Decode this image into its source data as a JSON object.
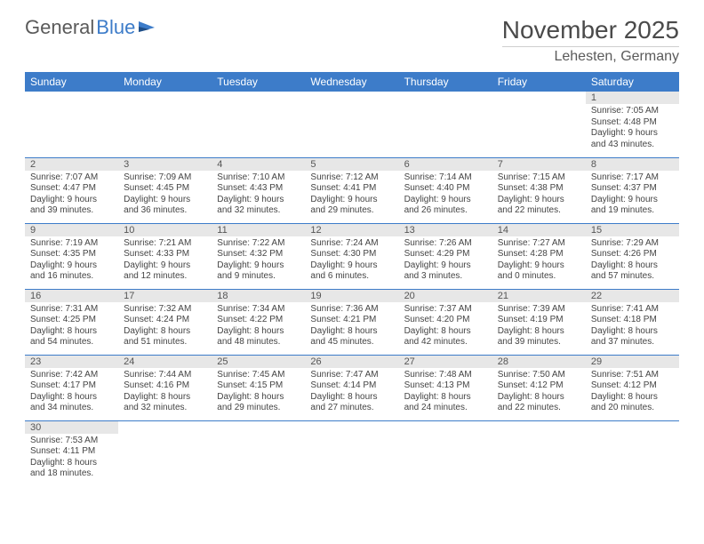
{
  "logo": {
    "text1": "General",
    "text2": "Blue"
  },
  "title": "November 2025",
  "location": "Lehesten, Germany",
  "weekdays": [
    "Sunday",
    "Monday",
    "Tuesday",
    "Wednesday",
    "Thursday",
    "Friday",
    "Saturday"
  ],
  "colors": {
    "header_bg": "#3d7cc9",
    "header_text": "#ffffff",
    "daynum_bg": "#e7e7e7",
    "row_divider": "#3d7cc9",
    "text": "#444444",
    "title_text": "#4a4a4a"
  },
  "weeks": [
    [
      null,
      null,
      null,
      null,
      null,
      null,
      {
        "n": "1",
        "sunrise": "7:05 AM",
        "sunset": "4:48 PM",
        "dl": "9 hours and 43 minutes."
      }
    ],
    [
      {
        "n": "2",
        "sunrise": "7:07 AM",
        "sunset": "4:47 PM",
        "dl": "9 hours and 39 minutes."
      },
      {
        "n": "3",
        "sunrise": "7:09 AM",
        "sunset": "4:45 PM",
        "dl": "9 hours and 36 minutes."
      },
      {
        "n": "4",
        "sunrise": "7:10 AM",
        "sunset": "4:43 PM",
        "dl": "9 hours and 32 minutes."
      },
      {
        "n": "5",
        "sunrise": "7:12 AM",
        "sunset": "4:41 PM",
        "dl": "9 hours and 29 minutes."
      },
      {
        "n": "6",
        "sunrise": "7:14 AM",
        "sunset": "4:40 PM",
        "dl": "9 hours and 26 minutes."
      },
      {
        "n": "7",
        "sunrise": "7:15 AM",
        "sunset": "4:38 PM",
        "dl": "9 hours and 22 minutes."
      },
      {
        "n": "8",
        "sunrise": "7:17 AM",
        "sunset": "4:37 PM",
        "dl": "9 hours and 19 minutes."
      }
    ],
    [
      {
        "n": "9",
        "sunrise": "7:19 AM",
        "sunset": "4:35 PM",
        "dl": "9 hours and 16 minutes."
      },
      {
        "n": "10",
        "sunrise": "7:21 AM",
        "sunset": "4:33 PM",
        "dl": "9 hours and 12 minutes."
      },
      {
        "n": "11",
        "sunrise": "7:22 AM",
        "sunset": "4:32 PM",
        "dl": "9 hours and 9 minutes."
      },
      {
        "n": "12",
        "sunrise": "7:24 AM",
        "sunset": "4:30 PM",
        "dl": "9 hours and 6 minutes."
      },
      {
        "n": "13",
        "sunrise": "7:26 AM",
        "sunset": "4:29 PM",
        "dl": "9 hours and 3 minutes."
      },
      {
        "n": "14",
        "sunrise": "7:27 AM",
        "sunset": "4:28 PM",
        "dl": "9 hours and 0 minutes."
      },
      {
        "n": "15",
        "sunrise": "7:29 AM",
        "sunset": "4:26 PM",
        "dl": "8 hours and 57 minutes."
      }
    ],
    [
      {
        "n": "16",
        "sunrise": "7:31 AM",
        "sunset": "4:25 PM",
        "dl": "8 hours and 54 minutes."
      },
      {
        "n": "17",
        "sunrise": "7:32 AM",
        "sunset": "4:24 PM",
        "dl": "8 hours and 51 minutes."
      },
      {
        "n": "18",
        "sunrise": "7:34 AM",
        "sunset": "4:22 PM",
        "dl": "8 hours and 48 minutes."
      },
      {
        "n": "19",
        "sunrise": "7:36 AM",
        "sunset": "4:21 PM",
        "dl": "8 hours and 45 minutes."
      },
      {
        "n": "20",
        "sunrise": "7:37 AM",
        "sunset": "4:20 PM",
        "dl": "8 hours and 42 minutes."
      },
      {
        "n": "21",
        "sunrise": "7:39 AM",
        "sunset": "4:19 PM",
        "dl": "8 hours and 39 minutes."
      },
      {
        "n": "22",
        "sunrise": "7:41 AM",
        "sunset": "4:18 PM",
        "dl": "8 hours and 37 minutes."
      }
    ],
    [
      {
        "n": "23",
        "sunrise": "7:42 AM",
        "sunset": "4:17 PM",
        "dl": "8 hours and 34 minutes."
      },
      {
        "n": "24",
        "sunrise": "7:44 AM",
        "sunset": "4:16 PM",
        "dl": "8 hours and 32 minutes."
      },
      {
        "n": "25",
        "sunrise": "7:45 AM",
        "sunset": "4:15 PM",
        "dl": "8 hours and 29 minutes."
      },
      {
        "n": "26",
        "sunrise": "7:47 AM",
        "sunset": "4:14 PM",
        "dl": "8 hours and 27 minutes."
      },
      {
        "n": "27",
        "sunrise": "7:48 AM",
        "sunset": "4:13 PM",
        "dl": "8 hours and 24 minutes."
      },
      {
        "n": "28",
        "sunrise": "7:50 AM",
        "sunset": "4:12 PM",
        "dl": "8 hours and 22 minutes."
      },
      {
        "n": "29",
        "sunrise": "7:51 AM",
        "sunset": "4:12 PM",
        "dl": "8 hours and 20 minutes."
      }
    ],
    [
      {
        "n": "30",
        "sunrise": "7:53 AM",
        "sunset": "4:11 PM",
        "dl": "8 hours and 18 minutes."
      },
      null,
      null,
      null,
      null,
      null,
      null
    ]
  ],
  "labels": {
    "sunrise": "Sunrise: ",
    "sunset": "Sunset: ",
    "daylight": "Daylight: "
  }
}
